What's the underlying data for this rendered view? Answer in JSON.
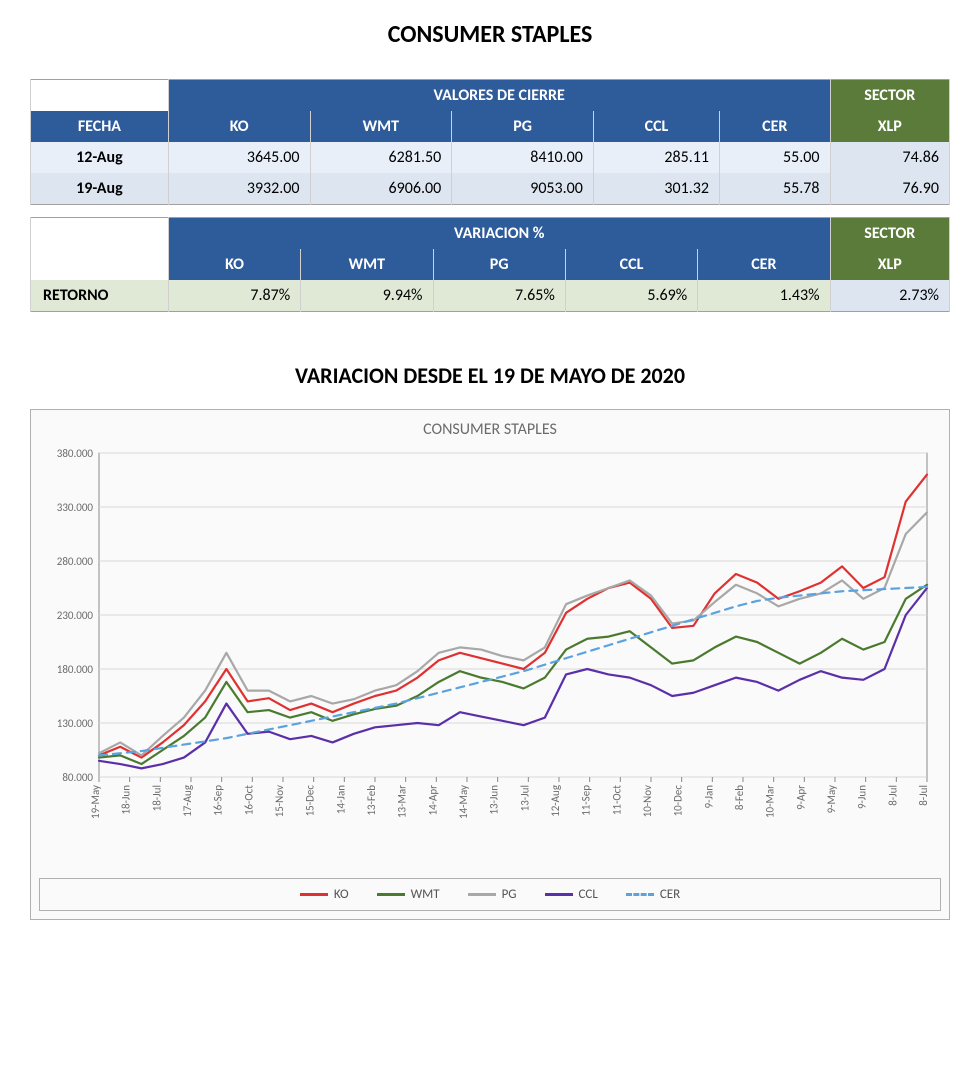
{
  "title": "CONSUMER STAPLES",
  "table1": {
    "header_span": "VALORES DE CIERRE",
    "sector_header": "SECTOR",
    "fecha": "FECHA",
    "xlp": "XLP",
    "cols": [
      "KO",
      "WMT",
      "PG",
      "CCL",
      "CER"
    ],
    "rows": [
      {
        "date": "12-Aug",
        "vals": [
          "3645.00",
          "6281.50",
          "8410.00",
          "285.11",
          "55.00"
        ],
        "sector": "74.86"
      },
      {
        "date": "19-Aug",
        "vals": [
          "3932.00",
          "6906.00",
          "9053.00",
          "301.32",
          "55.78"
        ],
        "sector": "76.90"
      }
    ]
  },
  "table2": {
    "header_span": "VARIACION %",
    "sector_header": "SECTOR",
    "xlp": "XLP",
    "retorno": "RETORNO",
    "cols": [
      "KO",
      "WMT",
      "PG",
      "CCL",
      "CER"
    ],
    "vals": [
      "7.87%",
      "9.94%",
      "7.65%",
      "5.69%",
      "1.43%"
    ],
    "sector": "2.73%"
  },
  "subTitle": "VARIACION DESDE EL 19 DE MAYO DE 2020",
  "chart": {
    "title": "CONSUMER STAPLES",
    "type": "line",
    "background_color": "#fafafa",
    "grid_color": "#d8d8d8",
    "border_color": "#b0b0b0",
    "axis_color": "#8a8a8a",
    "tick_font_color": "#6b6b6b",
    "title_color": "#6b6b6b",
    "title_fontsize": 16,
    "tick_fontsize": 11,
    "ylim": [
      80,
      380
    ],
    "ytick_step": 50,
    "yticks": [
      "80.000",
      "130.000",
      "180.000",
      "230.000",
      "280.000",
      "330.000",
      "380.000"
    ],
    "xlabels": [
      "19-May",
      "18-Jun",
      "18-Jul",
      "17-Aug",
      "16-Sep",
      "16-Oct",
      "15-Nov",
      "15-Dec",
      "14-Jan",
      "13-Feb",
      "13-Mar",
      "14-Apr",
      "14-May",
      "13-Jun",
      "13-Jul",
      "12-Aug",
      "11-Sep",
      "11-Oct",
      "10-Nov",
      "10-Dec",
      "9-Jan",
      "8-Feb",
      "10-Mar",
      "9-Apr",
      "9-May",
      "9-Jun",
      "8-Jul",
      "8-Jul"
    ],
    "line_width": 2.2,
    "series": [
      {
        "name": "KO",
        "color": "#e03131",
        "dash": "solid",
        "data": [
          100,
          108,
          98,
          112,
          128,
          150,
          180,
          150,
          153,
          142,
          148,
          140,
          148,
          155,
          160,
          172,
          188,
          195,
          190,
          185,
          180,
          195,
          232,
          245,
          255,
          260,
          245,
          218,
          220,
          250,
          268,
          260,
          245,
          252,
          260,
          275,
          255,
          265,
          335,
          360
        ]
      },
      {
        "name": "WMT",
        "color": "#4a7a2e",
        "dash": "solid",
        "data": [
          98,
          100,
          92,
          105,
          118,
          135,
          168,
          140,
          142,
          135,
          140,
          132,
          138,
          143,
          146,
          155,
          168,
          178,
          172,
          168,
          162,
          172,
          198,
          208,
          210,
          215,
          200,
          185,
          188,
          200,
          210,
          205,
          195,
          185,
          195,
          208,
          198,
          205,
          245,
          258
        ]
      },
      {
        "name": "PG",
        "color": "#a8a8a8",
        "dash": "solid",
        "data": [
          102,
          112,
          100,
          118,
          135,
          160,
          195,
          160,
          160,
          150,
          155,
          148,
          152,
          160,
          165,
          178,
          195,
          200,
          198,
          192,
          188,
          200,
          240,
          248,
          255,
          262,
          248,
          222,
          225,
          242,
          258,
          250,
          238,
          245,
          250,
          262,
          245,
          255,
          305,
          325
        ]
      },
      {
        "name": "CCL",
        "color": "#5b2fa8",
        "dash": "solid",
        "data": [
          95,
          92,
          88,
          92,
          98,
          112,
          148,
          120,
          122,
          115,
          118,
          112,
          120,
          126,
          128,
          130,
          128,
          140,
          136,
          132,
          128,
          135,
          175,
          180,
          175,
          172,
          165,
          155,
          158,
          165,
          172,
          168,
          160,
          170,
          178,
          172,
          170,
          180,
          230,
          255
        ]
      },
      {
        "name": "CER",
        "color": "#5aa3e0",
        "dash": "dashed",
        "data": [
          100,
          102,
          104,
          107,
          110,
          113,
          116,
          120,
          124,
          128,
          132,
          136,
          140,
          144,
          148,
          153,
          158,
          163,
          168,
          173,
          178,
          184,
          190,
          196,
          202,
          208,
          214,
          220,
          226,
          232,
          238,
          243,
          246,
          248,
          250,
          252,
          253,
          254,
          255,
          256
        ]
      }
    ],
    "legend_labels": [
      "KO",
      "WMT",
      "PG",
      "CCL",
      "CER"
    ]
  },
  "colors": {
    "header_blue": "#2e5b99",
    "header_green": "#5b7b3a",
    "row_light": "#e8eff8",
    "row_lighter": "#dde6f0",
    "row_green_light": "#dfe9d5"
  }
}
